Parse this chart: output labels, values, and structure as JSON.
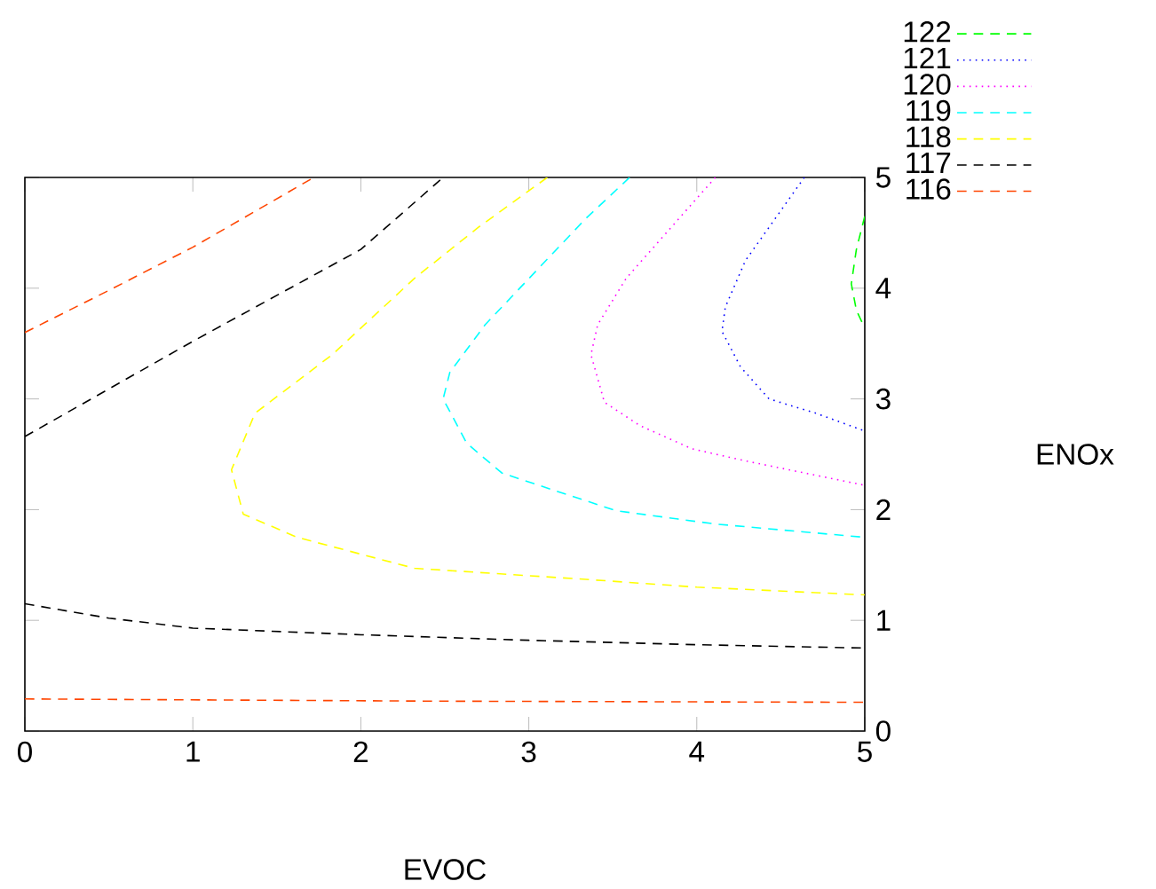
{
  "chart_data": {
    "type": "line",
    "xlabel": "EVOC",
    "ylabel": "ENOx",
    "xlim": [
      0,
      5
    ],
    "ylim": [
      0,
      5
    ],
    "xticks": [
      0,
      1,
      2,
      3,
      4,
      5
    ],
    "yticks": [
      0,
      1,
      2,
      3,
      4,
      5
    ],
    "grid": false,
    "legend": "top right",
    "series": [
      {
        "name": "122",
        "color": "#00ff00",
        "line_style": "dashed",
        "x": [
          5,
          4.95,
          4.92,
          4.95,
          5
        ],
        "values": [
          4.65,
          4.35,
          4.04,
          3.8,
          3.64
        ]
      },
      {
        "name": "121",
        "color": "#0000ff",
        "line_style": "dotted",
        "x": [
          4.64,
          4.29,
          4.17,
          4.15,
          4.26,
          4.43,
          4.71,
          5
        ],
        "values": [
          5,
          4.25,
          3.83,
          3.61,
          3.29,
          3.0,
          2.87,
          2.71
        ]
      },
      {
        "name": "120",
        "color": "#ff00ff",
        "line_style": "dotted",
        "x": [
          4.11,
          3.58,
          3.41,
          3.37,
          3.45,
          3.66,
          3.97,
          4.29,
          5
        ],
        "values": [
          5,
          4.09,
          3.67,
          3.4,
          2.97,
          2.76,
          2.55,
          2.44,
          2.22
        ]
      },
      {
        "name": "119",
        "color": "#00ffff",
        "line_style": "dashed",
        "x": [
          3.6,
          3.34,
          2.74,
          2.53,
          2.49,
          2.63,
          2.84,
          3.34,
          3.52,
          4.11,
          5
        ],
        "values": [
          5,
          4.63,
          3.67,
          3.24,
          3.0,
          2.6,
          2.33,
          2.08,
          1.99,
          1.87,
          1.75
        ]
      },
      {
        "name": "118",
        "color": "#ffff00",
        "line_style": "dashed",
        "x": [
          3.11,
          2.7,
          2.32,
          1.83,
          1.37,
          1.23,
          1.3,
          1.62,
          2.32,
          3.34,
          4,
          5
        ],
        "values": [
          5,
          4.55,
          4.09,
          3.4,
          2.87,
          2.36,
          1.96,
          1.75,
          1.47,
          1.37,
          1.3,
          1.23
        ]
      },
      {
        "name": "117",
        "color": "#000000",
        "line_style": "dashed",
        "x": [
          0,
          1,
          2,
          2.49,
          null,
          0,
          0.5,
          1,
          2,
          3,
          4,
          5
        ],
        "values": [
          2.66,
          3.52,
          4.35,
          5,
          null,
          1.15,
          1.02,
          0.93,
          0.87,
          0.82,
          0.78,
          0.75
        ]
      },
      {
        "name": "116",
        "color": "#ff4500",
        "line_style": "dashed",
        "x": [
          0,
          0.5,
          1,
          1.72,
          null,
          0,
          2.5,
          5
        ],
        "values": [
          3.6,
          3.98,
          4.37,
          5,
          null,
          0.29,
          0.27,
          0.26
        ]
      }
    ]
  }
}
